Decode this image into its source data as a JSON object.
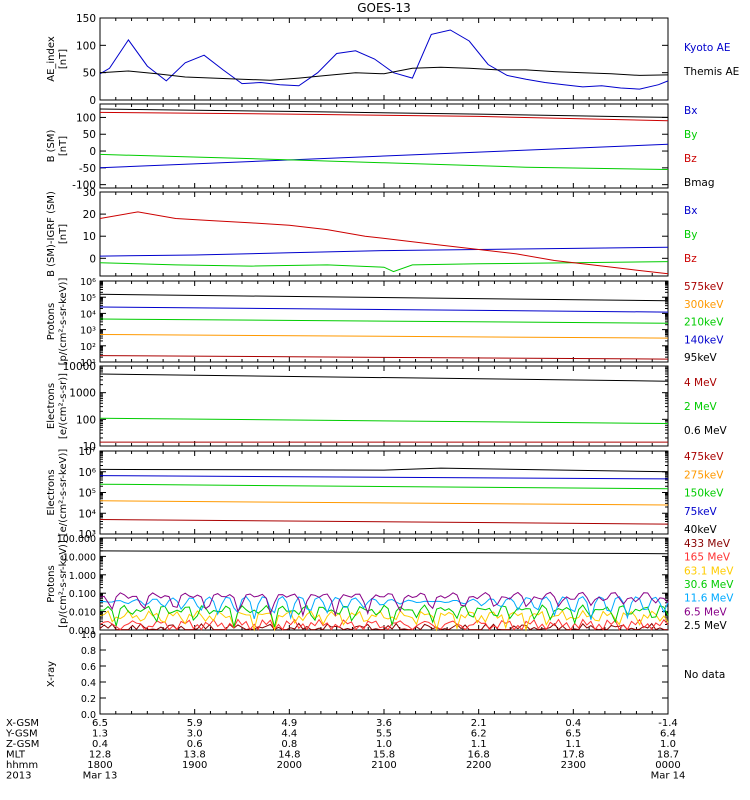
{
  "title": "GOES-13",
  "time_axis": {
    "labels": [
      {
        "main": "1800",
        "date": "Mar 13"
      },
      {
        "main": "1900",
        "date": ""
      },
      {
        "main": "2000",
        "date": ""
      },
      {
        "main": "2100",
        "date": ""
      },
      {
        "main": "2200",
        "date": ""
      },
      {
        "main": "2300",
        "date": ""
      },
      {
        "main": "0000",
        "date": "Mar 14"
      }
    ],
    "ephemeris": [
      {
        "name": "X-GSM",
        "values": [
          "6.5",
          "5.9",
          "4.9",
          "3.6",
          "2.1",
          "0.4",
          "-1.4"
        ]
      },
      {
        "name": "Y-GSM",
        "values": [
          "1.3",
          "3.0",
          "4.4",
          "5.5",
          "6.2",
          "6.5",
          "6.4"
        ]
      },
      {
        "name": "Z-GSM",
        "values": [
          "0.4",
          "0.6",
          "0.8",
          "1.0",
          "1.1",
          "1.1",
          "1.0"
        ]
      },
      {
        "name": "MLT",
        "values": [
          "12.8",
          "13.8",
          "14.8",
          "15.8",
          "16.8",
          "17.8",
          "18.7"
        ]
      },
      {
        "name": "hhmm",
        "values": []
      },
      {
        "name": "2013",
        "values": []
      }
    ]
  },
  "chart_data": [
    {
      "type": "line",
      "ylabel": [
        "AE_index",
        "[nT]"
      ],
      "ylim": [
        0,
        150
      ],
      "yticks": [
        {
          "v": 0,
          "t": "0"
        },
        {
          "v": 50,
          "t": "50"
        },
        {
          "v": 100,
          "t": "100"
        },
        {
          "v": 150,
          "t": "150"
        }
      ],
      "series": [
        {
          "name": "Kyoto AE",
          "color": "#0000cc",
          "x": [
            0,
            0.1,
            0.3,
            0.5,
            0.7,
            0.9,
            1.1,
            1.3,
            1.5,
            1.7,
            1.9,
            2.1,
            2.3,
            2.5,
            2.7,
            2.9,
            3.1,
            3.3,
            3.5,
            3.7,
            3.9,
            4.1,
            4.3,
            4.5,
            4.7,
            4.9,
            5.1,
            5.3,
            5.5,
            5.7,
            5.9,
            6.0
          ],
          "y": [
            48,
            58,
            110,
            62,
            35,
            68,
            82,
            55,
            30,
            32,
            28,
            26,
            50,
            85,
            90,
            75,
            50,
            40,
            120,
            128,
            108,
            65,
            45,
            38,
            32,
            28,
            24,
            26,
            22,
            20,
            28,
            35
          ]
        },
        {
          "name": "Themis AE",
          "color": "#000000",
          "x": [
            0,
            0.3,
            0.6,
            0.9,
            1.2,
            1.5,
            1.8,
            2.1,
            2.4,
            2.7,
            3.0,
            3.3,
            3.6,
            3.9,
            4.2,
            4.5,
            4.8,
            5.1,
            5.4,
            5.7,
            6.0
          ],
          "y": [
            50,
            53,
            48,
            42,
            40,
            38,
            36,
            40,
            45,
            50,
            48,
            58,
            60,
            58,
            55,
            55,
            52,
            50,
            48,
            45,
            46
          ]
        }
      ],
      "legend": [
        "Kyoto AE",
        "Themis AE"
      ]
    },
    {
      "type": "line",
      "ylabel": [
        "B (SM)",
        "[nT]"
      ],
      "ylim": [
        -110,
        140
      ],
      "yticks": [
        {
          "v": -100,
          "t": "-100"
        },
        {
          "v": -50,
          "t": "-50"
        },
        {
          "v": 0,
          "t": "0"
        },
        {
          "v": 50,
          "t": "50"
        },
        {
          "v": 100,
          "t": "100"
        }
      ],
      "series": [
        {
          "name": "Bx",
          "color": "#0000cc",
          "x": [
            0,
            6
          ],
          "y": [
            -50,
            20
          ]
        },
        {
          "name": "By",
          "color": "#00cc00",
          "x": [
            0,
            1.5,
            3,
            4.5,
            6
          ],
          "y": [
            -10,
            -22,
            -35,
            -48,
            -55
          ]
        },
        {
          "name": "Bz",
          "color": "#cc0000",
          "x": [
            0,
            2,
            4,
            6
          ],
          "y": [
            115,
            110,
            103,
            90
          ]
        },
        {
          "name": "Bmag",
          "color": "#000000",
          "x": [
            0,
            2,
            4,
            6
          ],
          "y": [
            125,
            118,
            110,
            100
          ]
        }
      ],
      "legend": [
        "Bx",
        "By",
        "Bz",
        "Bmag"
      ]
    },
    {
      "type": "line",
      "ylabel": [
        "B (SM)-IGRF (SM)",
        "[nT]"
      ],
      "ylim": [
        -8,
        30
      ],
      "yticks": [
        {
          "v": 0,
          "t": "0"
        },
        {
          "v": 10,
          "t": "10"
        },
        {
          "v": 20,
          "t": "20"
        },
        {
          "v": 30,
          "t": "30"
        }
      ],
      "series": [
        {
          "name": "Bx",
          "color": "#0000cc",
          "x": [
            0,
            1,
            2,
            3,
            4,
            5,
            6
          ],
          "y": [
            1,
            1.5,
            2.5,
            3.5,
            4,
            4.5,
            5
          ]
        },
        {
          "name": "By",
          "color": "#00cc00",
          "x": [
            0,
            0.8,
            1.6,
            2.4,
            3.0,
            3.1,
            3.3,
            4,
            5,
            6
          ],
          "y": [
            -2,
            -3,
            -3.5,
            -3,
            -4,
            -6,
            -3,
            -2.5,
            -2,
            -1.5
          ]
        },
        {
          "name": "Bz",
          "color": "#cc0000",
          "x": [
            0,
            0.4,
            0.8,
            1.2,
            1.6,
            2.0,
            2.4,
            2.8,
            3.2,
            3.6,
            4.0,
            4.4,
            4.8,
            5.2,
            5.6,
            6.0
          ],
          "y": [
            18,
            21,
            18,
            17,
            16,
            15,
            13,
            10,
            8,
            6,
            4,
            2,
            -1,
            -3,
            -5,
            -7
          ]
        }
      ],
      "legend": [
        "Bx",
        "By",
        "Bz"
      ]
    },
    {
      "type": "line",
      "yscale": "log",
      "ylabel": [
        "Protons",
        "[p/(cm²-s-sr-keV)]"
      ],
      "ylim": [
        10,
        1000000
      ],
      "yticks": [
        {
          "v": 10,
          "t": "10¹"
        },
        {
          "v": 100,
          "t": "10²"
        },
        {
          "v": 1000,
          "t": "10³"
        },
        {
          "v": 10000,
          "t": "10⁴"
        },
        {
          "v": 100000,
          "t": "10⁵"
        },
        {
          "v": 1000000,
          "t": "10⁶"
        }
      ],
      "series": [
        {
          "name": "575keV",
          "color": "#aa0000",
          "x": [
            0,
            6
          ],
          "y": [
            25,
            15
          ]
        },
        {
          "name": "300keV",
          "color": "#ff9900",
          "x": [
            0,
            6
          ],
          "y": [
            500,
            300
          ]
        },
        {
          "name": "210keV",
          "color": "#00cc00",
          "x": [
            0,
            6
          ],
          "y": [
            4500,
            2500
          ]
        },
        {
          "name": "140keV",
          "color": "#0000cc",
          "x": [
            0,
            6
          ],
          "y": [
            25000,
            12000
          ]
        },
        {
          "name": "95keV",
          "color": "#000000",
          "x": [
            0,
            6
          ],
          "y": [
            150000,
            60000
          ]
        }
      ],
      "legend": [
        "575keV",
        "300keV",
        "210keV",
        "140keV",
        "95keV"
      ]
    },
    {
      "type": "line",
      "yscale": "log",
      "ylabel": [
        "Electrons",
        "[e/(cm²-s-sr)]"
      ],
      "ylim": [
        10,
        10000
      ],
      "yticks": [
        {
          "v": 10,
          "t": "10"
        },
        {
          "v": 100,
          "t": "100"
        },
        {
          "v": 1000,
          "t": "1000"
        },
        {
          "v": 10000,
          "t": "10000"
        }
      ],
      "series": [
        {
          "name": "4 MeV",
          "color": "#aa0000",
          "x": [
            0,
            6
          ],
          "y": [
            14,
            14
          ]
        },
        {
          "name": "2 MeV",
          "color": "#00cc00",
          "x": [
            0,
            6
          ],
          "y": [
            110,
            70
          ]
        },
        {
          "name": "0.6 MeV",
          "color": "#000000",
          "x": [
            0,
            6
          ],
          "y": [
            5000,
            2700
          ]
        }
      ],
      "legend": [
        "4 MeV",
        "2 MeV",
        "0.6 MeV"
      ]
    },
    {
      "type": "line",
      "yscale": "log",
      "ylabel": [
        "Electrons",
        "[e/(cm²-s-sr-keV)]"
      ],
      "ylim": [
        1000,
        10000000
      ],
      "yticks": [
        {
          "v": 1000,
          "t": "10³"
        },
        {
          "v": 10000,
          "t": "10⁴"
        },
        {
          "v": 100000,
          "t": "10⁵"
        },
        {
          "v": 1000000,
          "t": "10⁶"
        },
        {
          "v": 10000000,
          "t": "10⁷"
        }
      ],
      "series": [
        {
          "name": "475keV",
          "color": "#aa0000",
          "x": [
            0,
            6
          ],
          "y": [
            5000,
            3000
          ]
        },
        {
          "name": "275keV",
          "color": "#ff9900",
          "x": [
            0,
            6
          ],
          "y": [
            40000,
            25000
          ]
        },
        {
          "name": "150keV",
          "color": "#00cc00",
          "x": [
            0,
            6
          ],
          "y": [
            250000,
            150000
          ]
        },
        {
          "name": "75keV",
          "color": "#0000cc",
          "x": [
            0,
            6
          ],
          "y": [
            650000,
            450000
          ]
        },
        {
          "name": "40keV",
          "color": "#000000",
          "x": [
            0,
            3,
            3.6,
            6
          ],
          "y": [
            1300000,
            1200000,
            1500000,
            1000000
          ]
        }
      ],
      "legend": [
        "475keV",
        "275keV",
        "150keV",
        "75keV",
        "40keV"
      ]
    },
    {
      "type": "line",
      "yscale": "log",
      "ylabel": [
        "Protons",
        "[p/(cm²-s-sr-keV)]"
      ],
      "ylim": [
        0.001,
        100
      ],
      "yticks": [
        {
          "v": 0.001,
          "t": "0.001"
        },
        {
          "v": 0.01,
          "t": "0.010"
        },
        {
          "v": 0.1,
          "t": "0.100"
        },
        {
          "v": 1,
          "t": "1.000"
        },
        {
          "v": 10,
          "t": "10.000"
        },
        {
          "v": 100,
          "t": "100.000"
        }
      ],
      "series": [
        {
          "name": "433 MeV",
          "color": "#880000",
          "x": [
            0,
            6
          ],
          "y": [
            0.0012,
            0.0012
          ]
        },
        {
          "name": "165 MeV",
          "color": "#ff3333",
          "x": [
            0,
            6
          ],
          "y": [
            0.002,
            0.002
          ]
        },
        {
          "name": "63.1 MeV",
          "color": "#ffcc00",
          "x": [
            0,
            6
          ],
          "y": [
            0.006,
            0.006
          ]
        },
        {
          "name": "30.6 MeV",
          "color": "#00cc00",
          "x": [
            0,
            6
          ],
          "y": [
            0.012,
            0.012
          ]
        },
        {
          "name": "11.6 MeV",
          "color": "#00aaff",
          "x": [
            0,
            6
          ],
          "y": [
            0.035,
            0.035
          ]
        },
        {
          "name": "6.5 MeV",
          "color": "#880088",
          "x": [
            0,
            6
          ],
          "y": [
            0.06,
            0.06
          ]
        },
        {
          "name": "2.5 MeV",
          "color": "#000000",
          "x": [
            0,
            6
          ],
          "y": [
            20,
            14
          ]
        }
      ],
      "legend": [
        "433 MeV",
        "165 MeV",
        "63.1 MeV",
        "30.6 MeV",
        "11.6 MeV",
        "6.5 MeV",
        "2.5 MeV"
      ]
    },
    {
      "type": "line",
      "ylabel": [
        "X-ray",
        ""
      ],
      "ylim": [
        0,
        1
      ],
      "yticks": [
        {
          "v": 0,
          "t": "0.0"
        },
        {
          "v": 0.2,
          "t": "0.2"
        },
        {
          "v": 0.4,
          "t": "0.4"
        },
        {
          "v": 0.6,
          "t": "0.6"
        },
        {
          "v": 0.8,
          "t": "0.8"
        },
        {
          "v": 1,
          "t": "1.0"
        }
      ],
      "series": [],
      "legend": [],
      "note": "No data"
    }
  ]
}
